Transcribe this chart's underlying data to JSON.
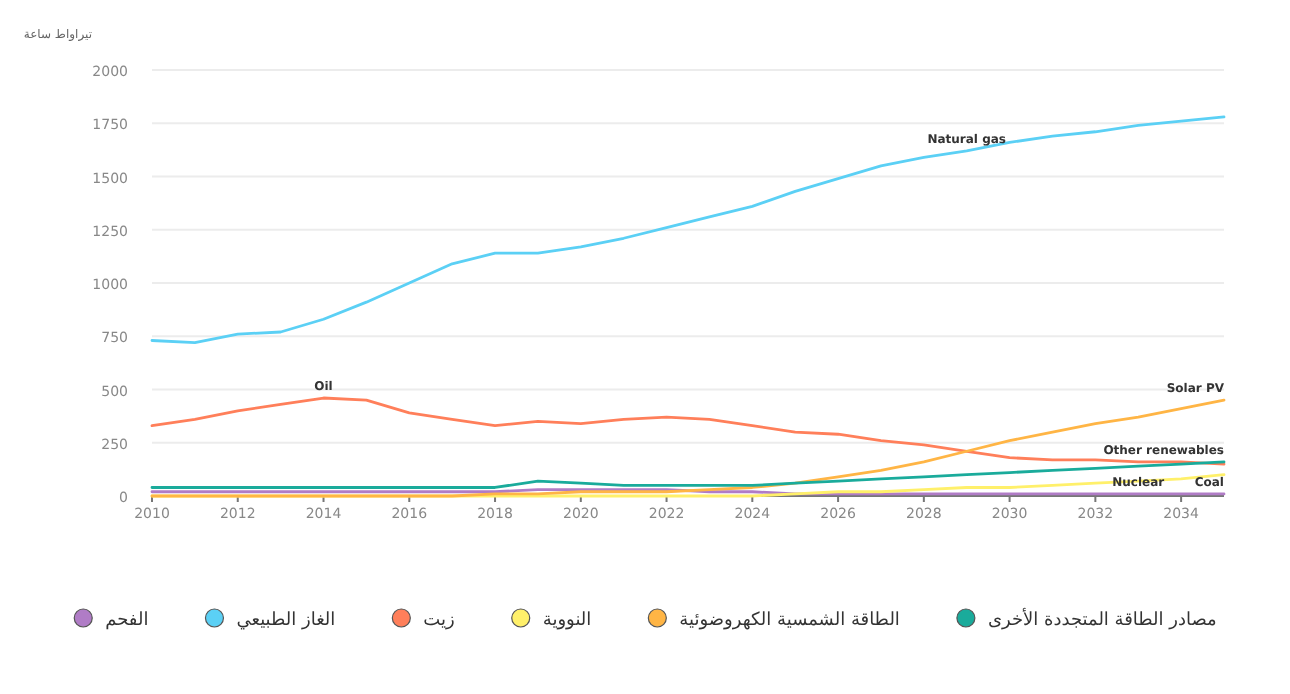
{
  "chart_data": {
    "type": "line",
    "ylabel": "تيراواط ساعة",
    "x": [
      2010,
      2011,
      2012,
      2013,
      2014,
      2015,
      2016,
      2017,
      2018,
      2019,
      2020,
      2021,
      2022,
      2023,
      2024,
      2025,
      2026,
      2027,
      2028,
      2029,
      2030,
      2031,
      2032,
      2033,
      2034,
      2035
    ],
    "xlim": [
      2010,
      2035
    ],
    "xticks": [
      2010,
      2012,
      2014,
      2016,
      2018,
      2020,
      2022,
      2024,
      2026,
      2028,
      2030,
      2032,
      2034
    ],
    "ylim": [
      0,
      2000
    ],
    "yticks": [
      0,
      250,
      500,
      750,
      1000,
      1250,
      1500,
      1750,
      2000
    ],
    "grid": "y",
    "legend": "bottom",
    "series": [
      {
        "name": "الفحم",
        "color": "#b07cc6",
        "values": [
          20,
          20,
          20,
          20,
          20,
          20,
          20,
          20,
          20,
          30,
          30,
          30,
          30,
          20,
          20,
          10,
          10,
          10,
          10,
          10,
          10,
          10,
          10,
          10,
          10,
          10
        ]
      },
      {
        "name": "الغاز الطبيعي",
        "color": "#5bd0f5",
        "values": [
          730,
          720,
          760,
          770,
          830,
          910,
          1000,
          1090,
          1140,
          1140,
          1170,
          1210,
          1260,
          1310,
          1360,
          1430,
          1490,
          1550,
          1590,
          1620,
          1660,
          1690,
          1710,
          1740,
          1760,
          1780
        ]
      },
      {
        "name": "زيت",
        "color": "#ff7f5a",
        "values": [
          330,
          360,
          400,
          430,
          460,
          450,
          390,
          360,
          330,
          350,
          340,
          360,
          370,
          360,
          330,
          300,
          290,
          260,
          240,
          210,
          180,
          170,
          170,
          160,
          160,
          150
        ]
      },
      {
        "name": "النووية",
        "color": "#fff06a",
        "values": [
          0,
          0,
          0,
          0,
          0,
          0,
          0,
          0,
          0,
          0,
          0,
          0,
          0,
          0,
          0,
          10,
          20,
          20,
          30,
          40,
          40,
          50,
          60,
          70,
          80,
          100
        ]
      },
      {
        "name": "الطاقة الشمسية الكهروضوئية",
        "color": "#ffb545",
        "values": [
          0,
          0,
          0,
          0,
          0,
          0,
          0,
          0,
          10,
          10,
          20,
          20,
          20,
          30,
          40,
          60,
          90,
          120,
          160,
          210,
          260,
          300,
          340,
          370,
          410,
          450
        ]
      },
      {
        "name": "مصادر الطاقة المتجددة الأخرى",
        "color": "#1aab9b",
        "values": [
          40,
          40,
          40,
          40,
          40,
          40,
          40,
          40,
          40,
          70,
          60,
          50,
          50,
          50,
          50,
          60,
          70,
          80,
          90,
          100,
          110,
          120,
          130,
          140,
          150,
          160
        ]
      }
    ],
    "annotations": [
      {
        "text": "Natural gas",
        "x": 2029,
        "y": 1620
      },
      {
        "text": "Oil",
        "x": 2014,
        "y": 460
      },
      {
        "text": "Solar PV",
        "x": 2035,
        "y": 450
      },
      {
        "text": "Other renewables",
        "x": 2035,
        "y": 160
      },
      {
        "text": "Nuclear",
        "x": 2033,
        "y": 10
      },
      {
        "text": "Coal",
        "x": 2035,
        "y": 10
      }
    ]
  }
}
